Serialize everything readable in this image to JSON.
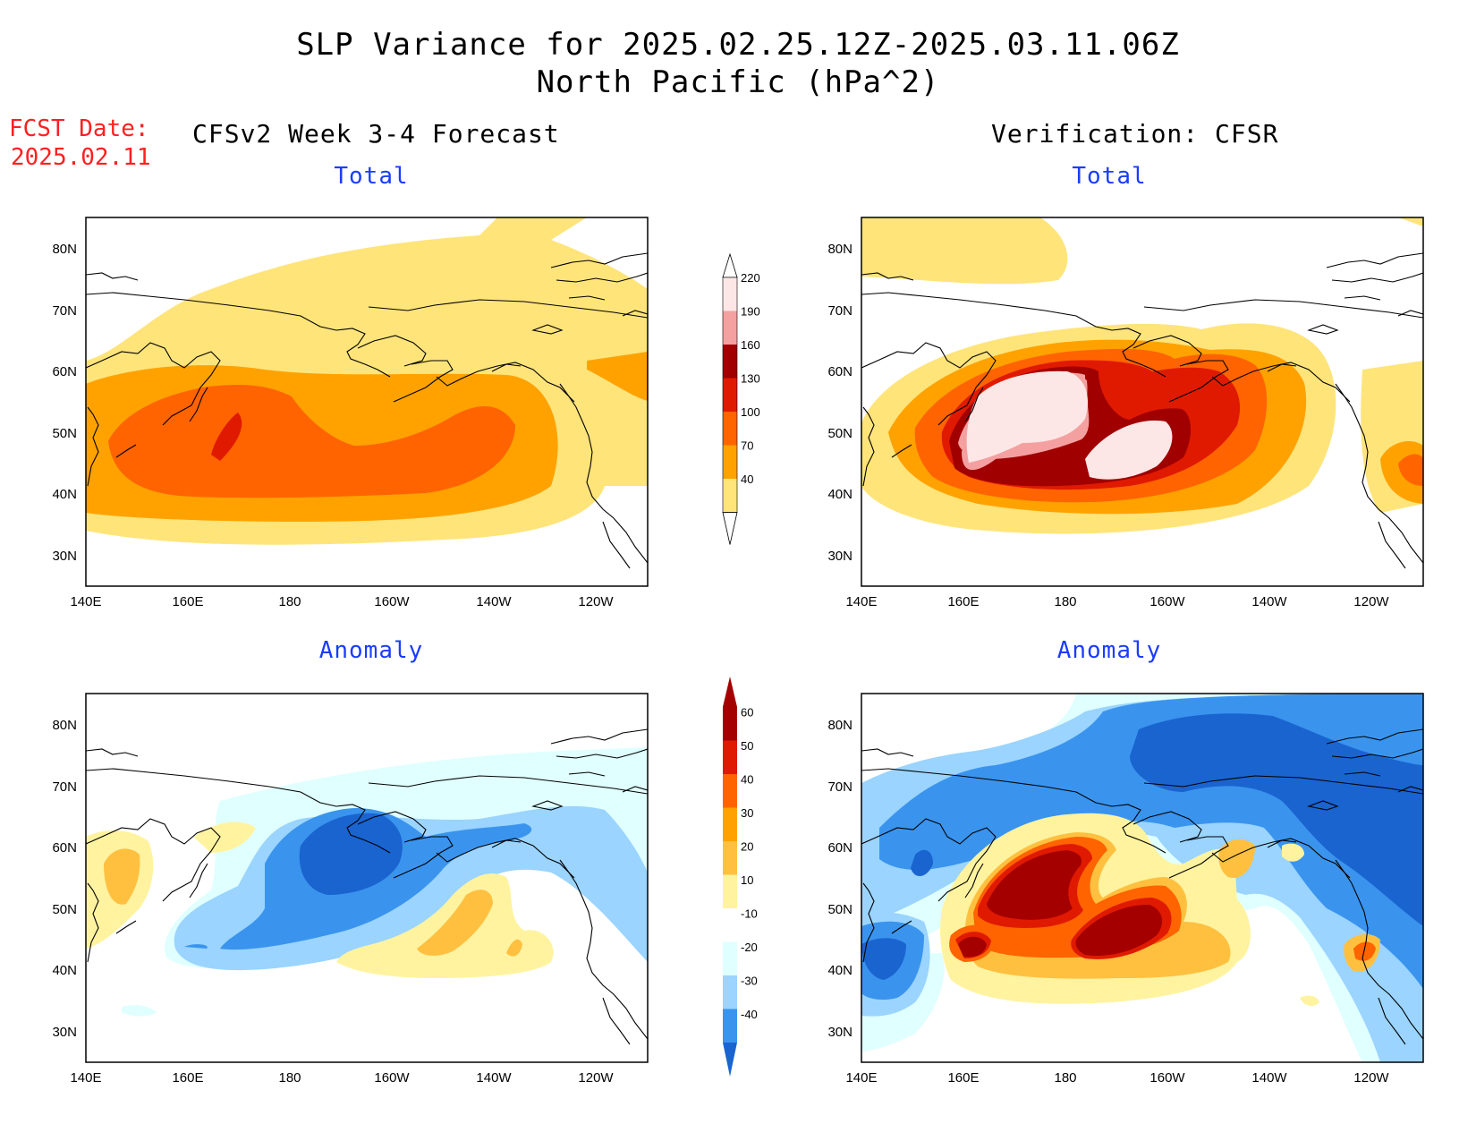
{
  "title": {
    "line1": "SLP Variance for 2025.02.25.12Z-2025.03.11.06Z",
    "line2": "North Pacific (hPa^2)"
  },
  "forecast_date": {
    "label": "FCST Date:",
    "value": "2025.02.11"
  },
  "headers": {
    "left": "CFSv2 Week 3-4 Forecast",
    "right": "Verification: CFSR"
  },
  "panels": {
    "tl": "Total",
    "tr": "Total",
    "bl": "Anomaly",
    "br": "Anomaly"
  },
  "axes": {
    "lat_labels": [
      "80N",
      "70N",
      "60N",
      "50N",
      "40N",
      "30N"
    ],
    "lon_labels": [
      "140E",
      "160E",
      "180",
      "160W",
      "140W",
      "120W"
    ]
  },
  "colorbar_total": {
    "labels": [
      "220",
      "190",
      "160",
      "130",
      "100",
      "70",
      "40"
    ],
    "colors": [
      "#fde6e6",
      "#f4a0a0",
      "#a00000",
      "#e01a00",
      "#ff6400",
      "#ffa200",
      "#ffe47a"
    ]
  },
  "colorbar_anom": {
    "labels": [
      "60",
      "50",
      "40",
      "30",
      "20",
      "10",
      "-10",
      "-20",
      "-30",
      "-40"
    ],
    "colors": [
      "#a50000",
      "#e01a00",
      "#ff6400",
      "#ffa200",
      "#ffc040",
      "#fff3a0",
      "#ffffff",
      "#e0ffff",
      "#9ad4ff",
      "#3a94ee",
      "#1a64d0"
    ]
  },
  "colors": {
    "title_sub": "#1a3cff",
    "forecast_date": "#ff2020",
    "coast": "#000000"
  }
}
